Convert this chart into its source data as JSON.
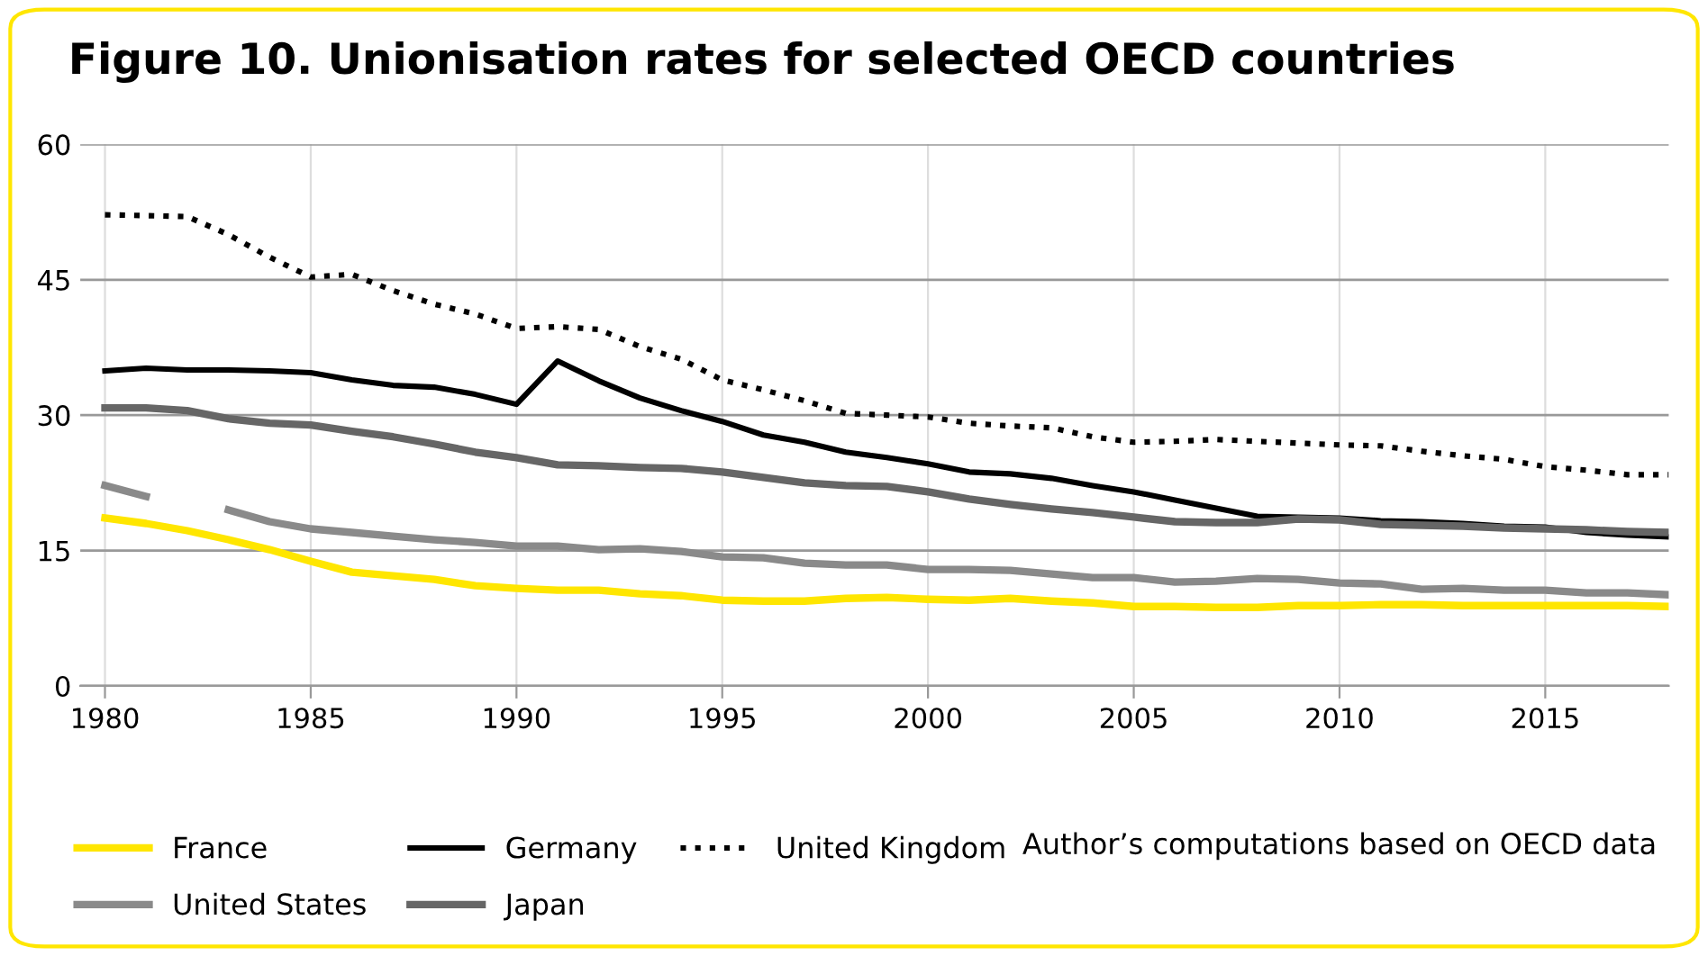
{
  "chart_data": {
    "type": "line",
    "title": "Figure 10. Unionisation rates for selected OECD countries",
    "x": [
      1980,
      1981,
      1982,
      1983,
      1984,
      1985,
      1986,
      1987,
      1988,
      1989,
      1990,
      1991,
      1992,
      1993,
      1994,
      1995,
      1996,
      1997,
      1998,
      1999,
      2000,
      2001,
      2002,
      2003,
      2004,
      2005,
      2006,
      2007,
      2008,
      2009,
      2010,
      2011,
      2012,
      2013,
      2014,
      2015,
      2016,
      2017,
      2018
    ],
    "series": [
      {
        "name": "France",
        "color": "#ffe600",
        "line_style": "solid",
        "values": [
          18.6,
          18.0,
          17.2,
          16.2,
          15.1,
          13.8,
          12.6,
          12.2,
          11.8,
          11.1,
          10.8,
          10.6,
          10.6,
          10.2,
          10.0,
          9.5,
          9.4,
          9.4,
          9.7,
          9.8,
          9.6,
          9.5,
          9.7,
          9.4,
          9.2,
          8.8,
          8.8,
          8.7,
          8.7,
          8.9,
          8.9,
          9.0,
          9.0,
          8.9,
          8.9,
          8.9,
          8.9,
          8.9,
          8.8
        ]
      },
      {
        "name": "Germany",
        "color": "#000000",
        "line_style": "solid",
        "values": [
          34.9,
          35.2,
          35.0,
          35.0,
          34.9,
          34.7,
          33.9,
          33.3,
          33.1,
          32.3,
          31.2,
          36.0,
          33.8,
          31.9,
          30.5,
          29.3,
          27.8,
          27.0,
          25.9,
          25.3,
          24.6,
          23.7,
          23.5,
          23.0,
          22.2,
          21.5,
          20.6,
          19.7,
          18.8,
          18.7,
          18.6,
          18.3,
          18.2,
          18.0,
          17.7,
          17.6,
          17.0,
          16.7,
          16.5
        ]
      },
      {
        "name": "United Kingdom",
        "color": "#000000",
        "line_style": "dotted",
        "values": [
          52.2,
          52.1,
          52.0,
          50.0,
          47.5,
          45.3,
          45.6,
          43.8,
          42.3,
          41.2,
          39.6,
          39.8,
          39.5,
          37.6,
          36.2,
          33.9,
          32.8,
          31.6,
          30.2,
          30.0,
          29.8,
          29.1,
          28.8,
          28.6,
          27.6,
          27.0,
          27.1,
          27.3,
          27.1,
          26.9,
          26.7,
          26.6,
          26.0,
          25.5,
          25.1,
          24.3,
          23.9,
          23.4,
          23.4
        ]
      },
      {
        "name": "United States",
        "color": "#8a8a8a",
        "line_style": "solid",
        "values": [
          22.2,
          21.0,
          null,
          19.5,
          18.2,
          17.4,
          17.0,
          16.6,
          16.2,
          15.9,
          15.5,
          15.5,
          15.1,
          15.2,
          14.9,
          14.3,
          14.2,
          13.6,
          13.4,
          13.4,
          12.9,
          12.9,
          12.8,
          12.4,
          12.0,
          12.0,
          11.5,
          11.6,
          11.9,
          11.8,
          11.4,
          11.3,
          10.7,
          10.8,
          10.6,
          10.6,
          10.3,
          10.3,
          10.1
        ]
      },
      {
        "name": "Japan",
        "color": "#666666",
        "line_style": "solid",
        "values": [
          30.8,
          30.8,
          30.5,
          29.6,
          29.1,
          28.9,
          28.2,
          27.6,
          26.8,
          25.9,
          25.3,
          24.5,
          24.4,
          24.2,
          24.1,
          23.7,
          23.1,
          22.5,
          22.2,
          22.1,
          21.5,
          20.7,
          20.1,
          19.6,
          19.2,
          18.7,
          18.2,
          18.1,
          18.1,
          18.5,
          18.4,
          17.9,
          17.8,
          17.7,
          17.5,
          17.4,
          17.3,
          17.1,
          17.0
        ]
      }
    ],
    "xlim": [
      1979.4,
      2018
    ],
    "xticks": [
      1980,
      1985,
      1990,
      1995,
      2000,
      2005,
      2010,
      2015
    ],
    "ylim": [
      0,
      60
    ],
    "yticks": [
      0,
      15,
      30,
      45,
      60
    ],
    "grid": true,
    "legend": "bottom",
    "marker": "none",
    "annotations": [
      "Author’s computations based on OECD data"
    ]
  }
}
